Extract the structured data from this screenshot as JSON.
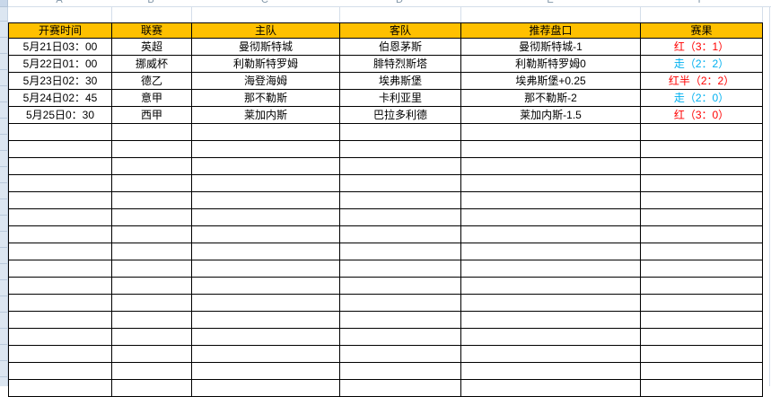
{
  "colors": {
    "header_bg": "#FFC000",
    "table_border": "#000000",
    "result_red": "#FF0000",
    "result_cyan": "#00B0F0",
    "faint_grid": "#D4DEEA",
    "gutter_bg": "#DCE6F1",
    "letter_text": "#8196A8"
  },
  "column_letters": [
    "A",
    "B",
    "C",
    "D",
    "E",
    "F"
  ],
  "table": {
    "headers": [
      "开赛时间",
      "联赛",
      "主队",
      "客队",
      "推荐盘口",
      "赛果"
    ],
    "header_names": [
      "time",
      "league",
      "home-team",
      "away-team",
      "handicap",
      "result"
    ],
    "rows": [
      {
        "time": "5月21日03：00",
        "league": "英超",
        "home": "曼彻斯特城",
        "away": "伯恩茅斯",
        "handicap": "曼彻斯特城-1",
        "result": "红（3：1）",
        "result_color": "#FF0000"
      },
      {
        "time": "5月22日01：00",
        "league": "挪威杯",
        "home": "利勒斯特罗姆",
        "away": "腓特烈斯塔",
        "handicap": "利勒斯特罗姆0",
        "result": "走（2：2）",
        "result_color": "#00B0F0"
      },
      {
        "time": "5月23日02：30",
        "league": "德乙",
        "home": "海登海姆",
        "away": "埃弗斯堡",
        "handicap": "埃弗斯堡+0.25",
        "result": "红半（2：2）",
        "result_color": "#FF0000"
      },
      {
        "time": "5月24日02：45",
        "league": "意甲",
        "home": "那不勒斯",
        "away": "卡利亚里",
        "handicap": "那不勒斯-2",
        "result": "走（2：0）",
        "result_color": "#00B0F0"
      },
      {
        "time": "5月25日0：30",
        "league": "西甲",
        "home": "莱加内斯",
        "away": "巴拉多利德",
        "handicap": "莱加内斯-1.5",
        "result": "红（3：0）",
        "result_color": "#FF0000"
      }
    ],
    "empty_rows": 16
  }
}
